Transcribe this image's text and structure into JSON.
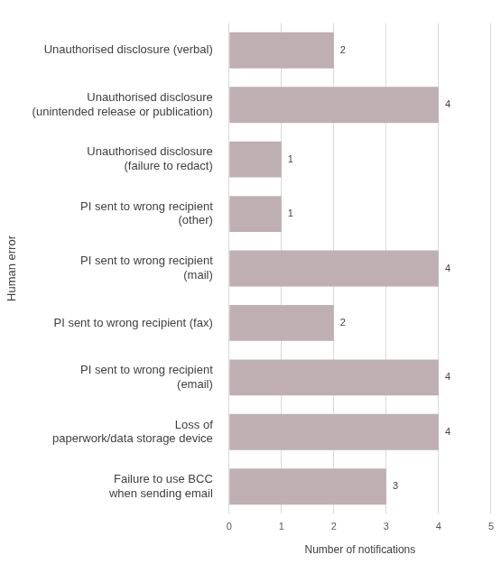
{
  "chart_data": {
    "type": "bar",
    "orientation": "horizontal",
    "x_label": "Number of notifications",
    "y_label": "Human error",
    "categories": [
      "Unauthorised disclosure (verbal)",
      "Unauthorised disclosure (unintended release or publication)",
      "Unauthorised disclosure (failure to redact)",
      "PI sent to wrong recipient (other)",
      "PI sent to wrong recipient (mail)",
      "PI sent to wrong recipient (fax)",
      "PI sent to wrong recipient (email)",
      "Loss of paperwork/data storage device",
      "Failure to use BCC when sending email"
    ],
    "values": [
      2,
      4,
      1,
      1,
      4,
      2,
      4,
      4,
      3
    ],
    "color": "#bfaeb2",
    "xlim": [
      0,
      5
    ],
    "xticks": [
      0,
      1,
      2,
      3,
      4,
      5
    ],
    "grid": true,
    "data_labels": true
  }
}
